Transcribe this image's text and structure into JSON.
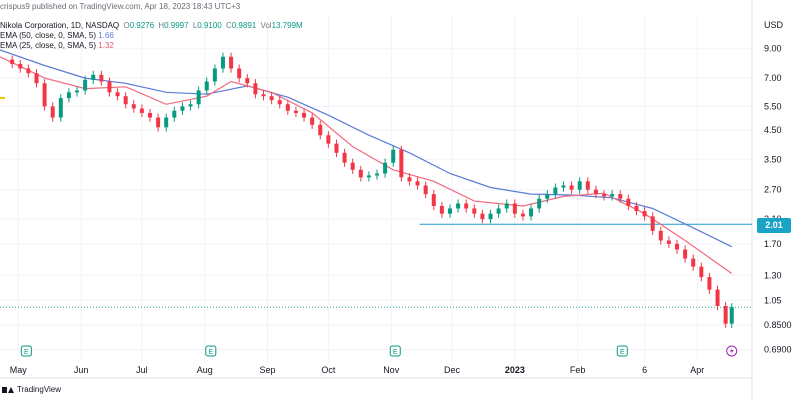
{
  "header": {
    "published": "crispus9 published on TradingView.com, Apr 18, 2023 18:43 UTC+3",
    "symbol": "Nikola Corporation, 1D, NASDAQ",
    "ohlc": {
      "o_label": "O",
      "o": "0.9276",
      "h_label": "H",
      "h": "0.9997",
      "l_label": "L",
      "l": "0.9100",
      "c_label": "C",
      "c": "0.9891",
      "vol_label": "Vol",
      "vol": "13.799M"
    },
    "ema50": {
      "label": "EMA (50, close, 0, SMA, 5)",
      "value": "1.66"
    },
    "ema25": {
      "label": "EMA (25, close, 0, SMA, 5)",
      "value": "1.32"
    }
  },
  "axis": {
    "currency": "USD"
  },
  "price_badge": "2.01",
  "footer": {
    "brand": "TradingView"
  },
  "colors": {
    "up": "#089981",
    "down": "#f23645",
    "ema50": "#5b7bd6",
    "ema25": "#f06a7d",
    "support": "#1e9bd1",
    "badge": "#19a3c6",
    "grid": "#f0f3fa"
  },
  "chart_data": {
    "type": "candlestick",
    "y_scale": "log",
    "ylim": [
      0.62,
      12.0
    ],
    "y_ticks": [
      "9.00",
      "7.00",
      "5.50",
      "4.50",
      "3.50",
      "2.70",
      "2.10",
      "1.70",
      "1.30",
      "1.05",
      "0.8500",
      "0.6900"
    ],
    "x_ticks": [
      "May",
      "Jun",
      "Jul",
      "Aug",
      "Sep",
      "Oct",
      "Nov",
      "Dec",
      "2023",
      "Feb",
      "6",
      "Apr"
    ],
    "x_ticks_bold": [
      "2023"
    ],
    "x_range": [
      "2022-04-22",
      "2023-04-28"
    ],
    "support_level": {
      "price": 2.01,
      "from": "2022-11-15",
      "to": "2023-04-28"
    },
    "prev_close_line": 0.9891,
    "earnings_markers": [
      "2022-05-05",
      "2022-08-04",
      "2022-11-03",
      "2023-02-23"
    ],
    "alert_marker": "2023-04-18",
    "close_series": [
      [
        "2022-04-22",
        8.2
      ],
      [
        "2022-04-28",
        7.9
      ],
      [
        "2022-05-02",
        7.6
      ],
      [
        "2022-05-06",
        7.3
      ],
      [
        "2022-05-10",
        6.7
      ],
      [
        "2022-05-14",
        5.5
      ],
      [
        "2022-05-18",
        5.0
      ],
      [
        "2022-05-22",
        5.9
      ],
      [
        "2022-05-26",
        6.2
      ],
      [
        "2022-05-30",
        6.3
      ],
      [
        "2022-06-03",
        6.9
      ],
      [
        "2022-06-07",
        7.2
      ],
      [
        "2022-06-11",
        6.8
      ],
      [
        "2022-06-15",
        6.2
      ],
      [
        "2022-06-19",
        6.0
      ],
      [
        "2022-06-23",
        5.6
      ],
      [
        "2022-06-27",
        5.4
      ],
      [
        "2022-07-01",
        5.2
      ],
      [
        "2022-07-05",
        5.0
      ],
      [
        "2022-07-09",
        4.6
      ],
      [
        "2022-07-13",
        5.0
      ],
      [
        "2022-07-17",
        5.3
      ],
      [
        "2022-07-21",
        5.5
      ],
      [
        "2022-07-25",
        5.6
      ],
      [
        "2022-07-29",
        6.3
      ],
      [
        "2022-08-02",
        6.8
      ],
      [
        "2022-08-06",
        7.6
      ],
      [
        "2022-08-10",
        8.4
      ],
      [
        "2022-08-14",
        7.6
      ],
      [
        "2022-08-18",
        7.0
      ],
      [
        "2022-08-22",
        6.7
      ],
      [
        "2022-08-26",
        6.1
      ],
      [
        "2022-08-30",
        6.0
      ],
      [
        "2022-09-03",
        5.8
      ],
      [
        "2022-09-07",
        5.6
      ],
      [
        "2022-09-11",
        5.3
      ],
      [
        "2022-09-15",
        5.2
      ],
      [
        "2022-09-19",
        5.0
      ],
      [
        "2022-09-23",
        4.7
      ],
      [
        "2022-09-27",
        4.3
      ],
      [
        "2022-10-01",
        4.0
      ],
      [
        "2022-10-05",
        3.7
      ],
      [
        "2022-10-09",
        3.4
      ],
      [
        "2022-10-13",
        3.2
      ],
      [
        "2022-10-17",
        3.0
      ],
      [
        "2022-10-21",
        3.05
      ],
      [
        "2022-10-25",
        3.1
      ],
      [
        "2022-10-29",
        3.4
      ],
      [
        "2022-11-02",
        3.8
      ],
      [
        "2022-11-06",
        3.0
      ],
      [
        "2022-11-10",
        2.9
      ],
      [
        "2022-11-14",
        2.8
      ],
      [
        "2022-11-18",
        2.6
      ],
      [
        "2022-11-22",
        2.35
      ],
      [
        "2022-11-26",
        2.2
      ],
      [
        "2022-11-30",
        2.3
      ],
      [
        "2022-12-04",
        2.4
      ],
      [
        "2022-12-08",
        2.3
      ],
      [
        "2022-12-12",
        2.2
      ],
      [
        "2022-12-16",
        2.1
      ],
      [
        "2022-12-20",
        2.2
      ],
      [
        "2022-12-24",
        2.3
      ],
      [
        "2022-12-28",
        2.4
      ],
      [
        "2023-01-01",
        2.2
      ],
      [
        "2023-01-05",
        2.15
      ],
      [
        "2023-01-09",
        2.3
      ],
      [
        "2023-01-13",
        2.5
      ],
      [
        "2023-01-17",
        2.6
      ],
      [
        "2023-01-21",
        2.75
      ],
      [
        "2023-01-25",
        2.8
      ],
      [
        "2023-01-29",
        2.7
      ],
      [
        "2023-02-02",
        2.9
      ],
      [
        "2023-02-06",
        2.7
      ],
      [
        "2023-02-10",
        2.6
      ],
      [
        "2023-02-14",
        2.55
      ],
      [
        "2023-02-18",
        2.6
      ],
      [
        "2023-02-22",
        2.5
      ],
      [
        "2023-02-26",
        2.35
      ],
      [
        "2023-03-02",
        2.25
      ],
      [
        "2023-03-06",
        2.15
      ],
      [
        "2023-03-10",
        1.9
      ],
      [
        "2023-03-14",
        1.75
      ],
      [
        "2023-03-18",
        1.7
      ],
      [
        "2023-03-22",
        1.62
      ],
      [
        "2023-03-26",
        1.5
      ],
      [
        "2023-03-30",
        1.4
      ],
      [
        "2023-04-03",
        1.28
      ],
      [
        "2023-04-07",
        1.15
      ],
      [
        "2023-04-11",
        1.0
      ],
      [
        "2023-04-15",
        0.86
      ],
      [
        "2023-04-18",
        0.9891
      ]
    ],
    "ema50_series": [
      [
        "2022-04-22",
        8.9
      ],
      [
        "2022-05-14",
        7.8
      ],
      [
        "2022-06-03",
        7.0
      ],
      [
        "2022-06-23",
        6.7
      ],
      [
        "2022-07-13",
        6.2
      ],
      [
        "2022-08-02",
        6.1
      ],
      [
        "2022-08-22",
        6.55
      ],
      [
        "2022-09-11",
        5.95
      ],
      [
        "2022-10-01",
        5.1
      ],
      [
        "2022-10-21",
        4.3
      ],
      [
        "2022-11-10",
        3.7
      ],
      [
        "2022-11-30",
        3.1
      ],
      [
        "2022-12-20",
        2.75
      ],
      [
        "2023-01-09",
        2.6
      ],
      [
        "2023-01-29",
        2.58
      ],
      [
        "2023-02-18",
        2.52
      ],
      [
        "2023-03-10",
        2.3
      ],
      [
        "2023-03-30",
        1.95
      ],
      [
        "2023-04-18",
        1.66
      ]
    ],
    "ema25_series": [
      [
        "2022-04-22",
        8.4
      ],
      [
        "2022-05-14",
        7.0
      ],
      [
        "2022-06-03",
        6.4
      ],
      [
        "2022-06-23",
        6.5
      ],
      [
        "2022-07-13",
        5.6
      ],
      [
        "2022-08-02",
        6.0
      ],
      [
        "2022-08-14",
        6.8
      ],
      [
        "2022-09-03",
        6.2
      ],
      [
        "2022-09-23",
        5.2
      ],
      [
        "2022-10-13",
        3.9
      ],
      [
        "2022-11-02",
        3.2
      ],
      [
        "2022-11-22",
        2.9
      ],
      [
        "2022-12-12",
        2.45
      ],
      [
        "2023-01-05",
        2.35
      ],
      [
        "2023-01-25",
        2.55
      ],
      [
        "2023-02-14",
        2.62
      ],
      [
        "2023-03-06",
        2.2
      ],
      [
        "2023-03-26",
        1.75
      ],
      [
        "2023-04-18",
        1.32
      ]
    ]
  }
}
